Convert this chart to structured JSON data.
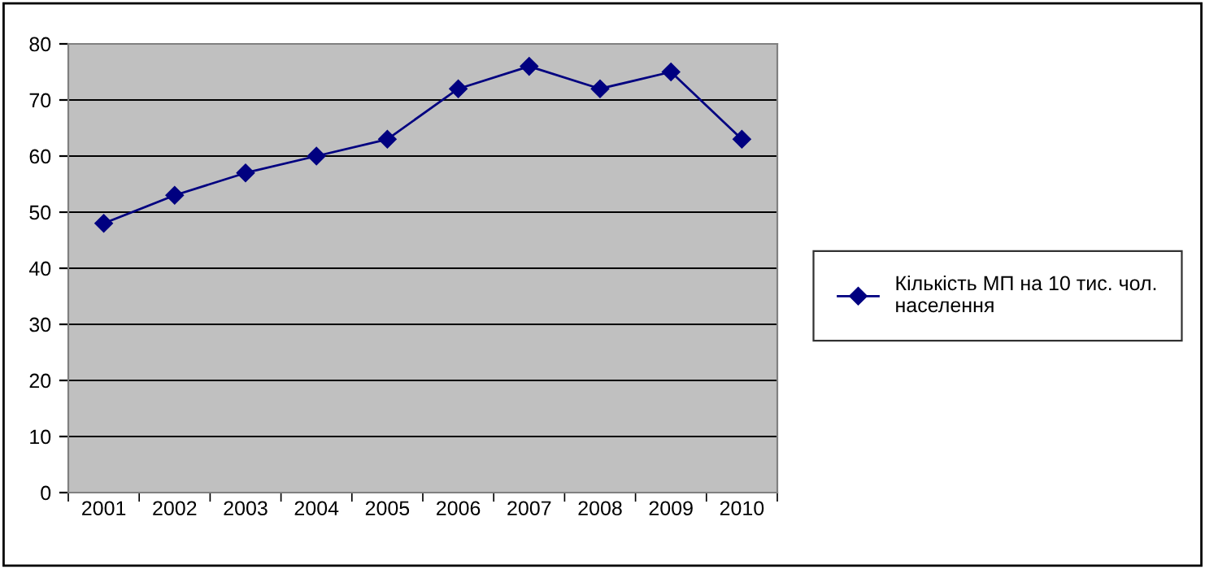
{
  "chart_data": {
    "type": "line",
    "categories": [
      "2001",
      "2002",
      "2003",
      "2004",
      "2005",
      "2006",
      "2007",
      "2008",
      "2009",
      "2010"
    ],
    "series": [
      {
        "name": "Кількість МП на 10 тис. чол. населення",
        "color": "#000080",
        "values": [
          48,
          53,
          57,
          60,
          63,
          72,
          76,
          72,
          75,
          63
        ]
      }
    ],
    "ylim": [
      0,
      80
    ],
    "yticks": [
      0,
      10,
      20,
      30,
      40,
      50,
      60,
      70,
      80
    ],
    "grid": "y",
    "legend": "right",
    "marker": "diamond",
    "line_style": "solid"
  }
}
